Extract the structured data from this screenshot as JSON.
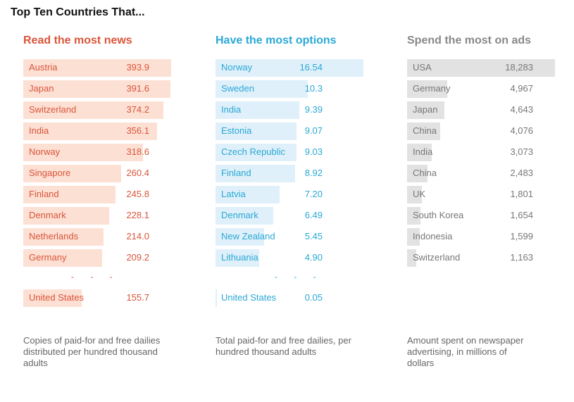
{
  "title": "Top Ten Countries That...",
  "chart_data": [
    {
      "type": "bar",
      "title": "Read the most news",
      "accent": "#d9553a",
      "bar_color": "#fde0d4",
      "text_color": "#d9553a",
      "xlim": [
        0,
        393.9
      ],
      "categories": [
        "Austria",
        "Japan",
        "Switzerland",
        "India",
        "Norway",
        "Singapore",
        "Finland",
        "Denmark",
        "Netherlands",
        "Germany"
      ],
      "values": [
        393.9,
        391.6,
        374.2,
        356.1,
        318.6,
        260.4,
        245.8,
        228.1,
        214.0,
        209.2
      ],
      "labels": [
        "393.9",
        "391.6",
        "374.2",
        "356.1",
        "318.6",
        "260.4",
        "245.8",
        "228.1",
        "214.0",
        "209.2"
      ],
      "extra": {
        "category": "United States",
        "value": 155.7,
        "label": "155.7"
      },
      "note": "Copies of paid-for and free dailies distributed per hundred thousand adults"
    },
    {
      "type": "bar",
      "title": "Have the most options",
      "accent": "#2aa8d6",
      "bar_color": "#dff0fa",
      "text_color": "#2aa8d6",
      "xlim": [
        0,
        16.54
      ],
      "categories": [
        "Norway",
        "Sweden",
        "India",
        "Estonia",
        "Czech Republic",
        "Finland",
        "Latvia",
        "Denmark",
        "New Zealand",
        "Lithuania"
      ],
      "values": [
        16.54,
        10.3,
        9.39,
        9.07,
        9.03,
        8.92,
        7.2,
        6.49,
        5.45,
        4.9
      ],
      "labels": [
        "16.54",
        "10.3",
        "9.39",
        "9.07",
        "9.03",
        "8.92",
        "7.20",
        "6.49",
        "5.45",
        "4.90"
      ],
      "extra": {
        "category": "United States",
        "value": 0.05,
        "label": "0.05"
      },
      "note": "Total paid-for and free dailies, per hundred thousand adults"
    },
    {
      "type": "bar",
      "title": "Spend the most on ads",
      "accent": "#888888",
      "bar_color": "#e2e2e2",
      "text_color": "#777777",
      "xlim": [
        0,
        18283
      ],
      "categories": [
        "USA",
        "Germany",
        "Japan",
        "China",
        "India",
        "China",
        "UK",
        "South Korea",
        "Indonesia",
        "Switzerland"
      ],
      "values": [
        18283,
        4967,
        4643,
        4076,
        3073,
        2483,
        1801,
        1654,
        1599,
        1163
      ],
      "labels": [
        "18,283",
        "4,967",
        "4,643",
        "4,076",
        "3,073",
        "2,483",
        "1,801",
        "1,654",
        "1,599",
        "1,163"
      ],
      "note": "Amount spent on newspaper advertising, in millions of dollars"
    }
  ]
}
